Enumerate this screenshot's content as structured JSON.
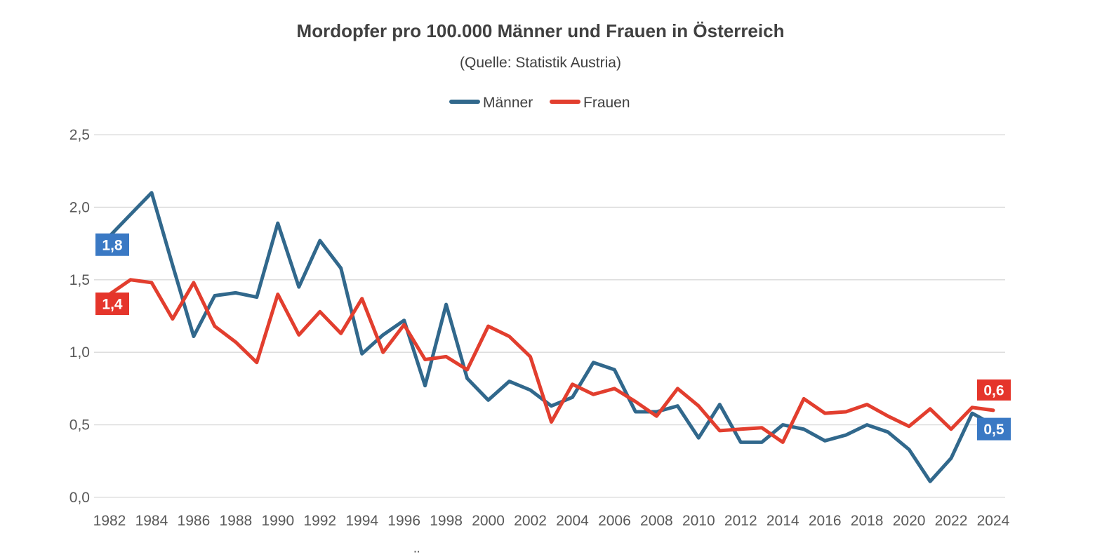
{
  "title": "Mordopfer pro 100.000 Männer und Frauen in Österreich",
  "subtitle": "(Quelle: Statistik Austria)",
  "bottom_mark": "¨",
  "colors": {
    "maenner_line": "#31688C",
    "frauen_line": "#E23E2E",
    "maenner_label_box": "#3A79C4",
    "frauen_label_box": "#E5352B",
    "gridline": "#D9D9D9",
    "tick_text": "#595959",
    "title_text": "#404040",
    "label_text": "#FFFFFF"
  },
  "legend": {
    "position": "top",
    "items": [
      {
        "label": "Männer",
        "color": "#31688C"
      },
      {
        "label": "Frauen",
        "color": "#E23E2E"
      }
    ]
  },
  "chart_data": {
    "type": "line",
    "title": "Mordopfer pro 100.000 Männer und Frauen in Österreich",
    "subtitle": "(Quelle: Statistik Austria)",
    "grid": "horizontal",
    "ylim": [
      0,
      2.5
    ],
    "ytick_values": [
      0,
      0.5,
      1.0,
      1.5,
      2.0,
      2.5
    ],
    "ytick_labels": [
      "0,0",
      "0,5",
      "1,0",
      "1,5",
      "2,0",
      "2,5"
    ],
    "xtick_labels": [
      1982,
      1984,
      1986,
      1988,
      1990,
      1992,
      1994,
      1996,
      1998,
      2000,
      2002,
      2004,
      2006,
      2008,
      2010,
      2012,
      2014,
      2016,
      2018,
      2020,
      2022,
      2024
    ],
    "x": [
      1982,
      1983,
      1984,
      1985,
      1986,
      1987,
      1988,
      1989,
      1990,
      1991,
      1992,
      1993,
      1994,
      1995,
      1996,
      1997,
      1998,
      1999,
      2000,
      2001,
      2002,
      2003,
      2004,
      2005,
      2006,
      2007,
      2008,
      2009,
      2010,
      2011,
      2012,
      2013,
      2014,
      2015,
      2016,
      2017,
      2018,
      2019,
      2020,
      2021,
      2022,
      2023,
      2024
    ],
    "series": [
      {
        "name": "Männer",
        "color": "#31688C",
        "values": [
          1.8,
          1.95,
          2.1,
          1.6,
          1.11,
          1.39,
          1.41,
          1.38,
          1.89,
          1.45,
          1.77,
          1.58,
          0.99,
          1.12,
          1.22,
          0.77,
          1.33,
          0.82,
          0.67,
          0.8,
          0.74,
          0.63,
          0.69,
          0.93,
          0.88,
          0.59,
          0.59,
          0.63,
          0.41,
          0.64,
          0.38,
          0.38,
          0.5,
          0.47,
          0.39,
          0.43,
          0.5,
          0.45,
          0.33,
          0.11,
          0.27,
          0.58,
          0.5
        ]
      },
      {
        "name": "Frauen",
        "color": "#E23E2E",
        "values": [
          1.4,
          1.5,
          1.48,
          1.23,
          1.48,
          1.18,
          1.07,
          0.93,
          1.4,
          1.12,
          1.28,
          1.13,
          1.37,
          1.0,
          1.19,
          0.95,
          0.97,
          0.88,
          1.18,
          1.11,
          0.97,
          0.52,
          0.78,
          0.71,
          0.75,
          0.66,
          0.56,
          0.75,
          0.63,
          0.46,
          0.47,
          0.48,
          0.38,
          0.68,
          0.58,
          0.59,
          0.64,
          0.56,
          0.49,
          0.61,
          0.47,
          0.62,
          0.6
        ]
      }
    ],
    "point_labels": [
      {
        "series": "Männer",
        "year": 1982,
        "value": 1.8,
        "text": "1,8",
        "box_color": "#3A79C4"
      },
      {
        "series": "Frauen",
        "year": 1982,
        "value": 1.4,
        "text": "1,4",
        "box_color": "#E5352B"
      },
      {
        "series": "Frauen",
        "year": 2024,
        "value": 0.6,
        "text": "0,6",
        "box_color": "#E5352B"
      },
      {
        "series": "Männer",
        "year": 2024,
        "value": 0.5,
        "text": "0,5",
        "box_color": "#3A79C4"
      }
    ],
    "legend_position": "top-center"
  }
}
